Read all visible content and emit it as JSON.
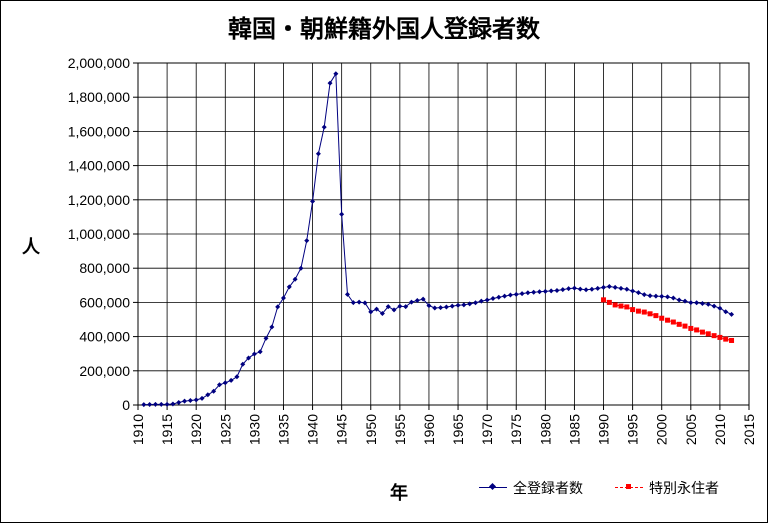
{
  "chart_data": {
    "type": "line",
    "title": "韓国・朝鮮籍外国人登録者数",
    "xlabel": "年",
    "ylabel": "人",
    "xlim": [
      1910,
      2015
    ],
    "ylim": [
      0,
      2000000
    ],
    "xticks": [
      "1910",
      "1915",
      "1920",
      "1925",
      "1930",
      "1935",
      "1940",
      "1945",
      "1950",
      "1955",
      "1960",
      "1965",
      "1970",
      "1975",
      "1980",
      "1985",
      "1990",
      "1995",
      "2000",
      "2005",
      "2010",
      "2015"
    ],
    "yticks": [
      "0",
      "200,000",
      "400,000",
      "600,000",
      "800,000",
      "1,000,000",
      "1,200,000",
      "1,400,000",
      "1,600,000",
      "1,800,000",
      "2,000,000"
    ],
    "ytick_values": [
      0,
      200000,
      400000,
      600000,
      800000,
      1000000,
      1200000,
      1400000,
      1600000,
      1800000,
      2000000
    ],
    "xtick_values": [
      1910,
      1915,
      1920,
      1925,
      1930,
      1935,
      1940,
      1945,
      1950,
      1955,
      1960,
      1965,
      1970,
      1975,
      1980,
      1985,
      1990,
      1995,
      2000,
      2005,
      2010,
      2015
    ],
    "grid": "vertical-and-horizontal",
    "legend_position": "bottom-right",
    "series": [
      {
        "name": "全登録者数",
        "color": "#000080",
        "marker": "diamond",
        "x": [
          1911,
          1912,
          1913,
          1914,
          1915,
          1916,
          1917,
          1918,
          1919,
          1920,
          1921,
          1922,
          1923,
          1924,
          1925,
          1926,
          1927,
          1928,
          1929,
          1930,
          1931,
          1932,
          1933,
          1934,
          1935,
          1936,
          1937,
          1938,
          1939,
          1940,
          1941,
          1942,
          1943,
          1944,
          1945,
          1946,
          1947,
          1948,
          1949,
          1950,
          1951,
          1952,
          1953,
          1954,
          1955,
          1956,
          1957,
          1958,
          1959,
          1960,
          1961,
          1962,
          1963,
          1964,
          1965,
          1966,
          1967,
          1968,
          1969,
          1970,
          1971,
          1972,
          1973,
          1974,
          1975,
          1976,
          1977,
          1978,
          1979,
          1980,
          1981,
          1982,
          1983,
          1984,
          1985,
          1986,
          1987,
          1988,
          1989,
          1990,
          1991,
          1992,
          1993,
          1994,
          1995,
          1996,
          1997,
          1998,
          1999,
          2000,
          2001,
          2002,
          2003,
          2004,
          2005,
          2006,
          2007,
          2008,
          2009,
          2010,
          2011,
          2012
        ],
        "values": [
          2527,
          3171,
          3635,
          3542,
          3917,
          5624,
          14502,
          22411,
          26605,
          30189,
          38651,
          59722,
          80415,
          118152,
          129870,
          143798,
          165286,
          238102,
          275206,
          298091,
          311247,
          390543,
          456217,
          573695,
          625678,
          690501,
          735689,
          799878,
          961591,
          1190444,
          1469230,
          1625054,
          1882456,
          1936843,
          1115594,
          647006,
          598507,
          601772,
          597561,
          544903,
          560700,
          535065,
          575287,
          556239,
          577682,
          575287,
          601769,
          611085,
          619096,
          581257,
          567452,
          569360,
          573284,
          578545,
          583537,
          585278,
          591345,
          598076,
          607315,
          614202,
          622690,
          629809,
          636346,
          643096,
          647156,
          651348,
          656233,
          659025,
          662561,
          664536,
          667325,
          669854,
          674581,
          680706,
          683313,
          677959,
          673787,
          677140,
          681838,
          687940,
          693050,
          688144,
          682276,
          676793,
          666376,
          657159,
          645373,
          638828,
          636548,
          635269,
          632405,
          625422,
          613791,
          607419,
          598687,
          598219,
          593489,
          589239,
          578495,
          565989,
          545401,
          530046
        ]
      },
      {
        "name": "特別永住者",
        "color": "#ff0000",
        "marker": "square",
        "x": [
          1990,
          1991,
          1992,
          1993,
          1994,
          1995,
          1996,
          1997,
          1998,
          1999,
          2000,
          2001,
          2002,
          2003,
          2004,
          2005,
          2006,
          2007,
          2008,
          2009,
          2010,
          2011,
          2012
        ],
        "values": [
          615000,
          600000,
          585170,
          578741,
          573485,
          557921,
          548968,
          543464,
          533396,
          522677,
          507429,
          495986,
          485180,
          471756,
          461460,
          447805,
          438974,
          426207,
          416309,
          405571,
          395234,
          385232,
          377350
        ]
      }
    ]
  }
}
